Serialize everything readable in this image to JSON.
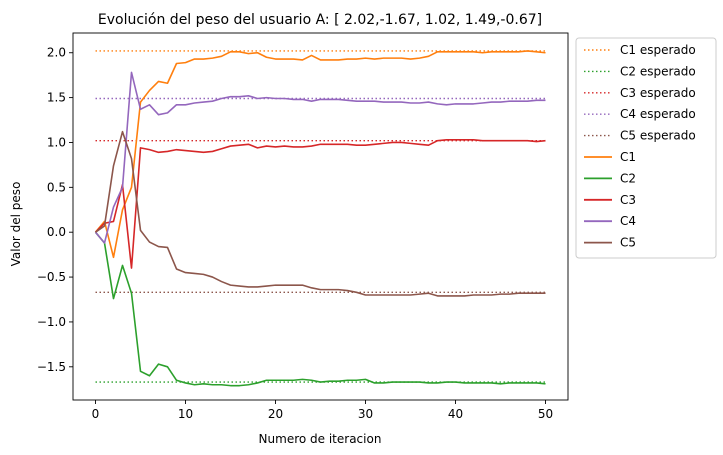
{
  "chart_data": {
    "type": "line",
    "title": "Evolución del peso del usuario A: [ 2.02,-1.67, 1.02, 1.49,-0.67]",
    "xlabel": "Numero de iteracion",
    "ylabel": "Valor del peso",
    "xlim": [
      -2.5,
      52.5
    ],
    "ylim": [
      -1.87,
      2.22
    ],
    "xticks": [
      0,
      10,
      20,
      30,
      40,
      50
    ],
    "yticks": [
      -1.5,
      -1.0,
      -0.5,
      0.0,
      0.5,
      1.0,
      1.5,
      2.0
    ],
    "ytick_labels": [
      "−1.5",
      "−1.0",
      "−0.5",
      "0.0",
      "0.5",
      "1.0",
      "1.5",
      "2.0"
    ],
    "grid": false,
    "legend_position": "outside-right",
    "expected": [
      {
        "name": "C1 esperado",
        "value": 2.02,
        "color": "#ff7f0e"
      },
      {
        "name": "C2 esperado",
        "value": -1.67,
        "color": "#2ca02c"
      },
      {
        "name": "C3 esperado",
        "value": 1.02,
        "color": "#d62728"
      },
      {
        "name": "C4 esperado",
        "value": 1.49,
        "color": "#9467bd"
      },
      {
        "name": "C5 esperado",
        "value": -0.67,
        "color": "#8c564b"
      }
    ],
    "x": [
      0,
      1,
      2,
      3,
      4,
      5,
      6,
      7,
      8,
      9,
      10,
      11,
      12,
      13,
      14,
      15,
      16,
      17,
      18,
      19,
      20,
      21,
      22,
      23,
      24,
      25,
      26,
      27,
      28,
      29,
      30,
      31,
      32,
      33,
      34,
      35,
      36,
      37,
      38,
      39,
      40,
      41,
      42,
      43,
      44,
      45,
      46,
      47,
      48,
      49,
      50
    ],
    "series": [
      {
        "name": "C1",
        "color": "#ff7f0e",
        "values": [
          0,
          0.12,
          -0.28,
          0.25,
          0.5,
          1.45,
          1.58,
          1.68,
          1.66,
          1.88,
          1.89,
          1.93,
          1.93,
          1.94,
          1.96,
          2.01,
          2.01,
          1.99,
          2.0,
          1.95,
          1.93,
          1.93,
          1.93,
          1.92,
          1.97,
          1.92,
          1.92,
          1.92,
          1.93,
          1.93,
          1.94,
          1.93,
          1.94,
          1.94,
          1.94,
          1.93,
          1.94,
          1.96,
          2.01,
          2.01,
          2.01,
          2.01,
          2.01,
          2.0,
          2.01,
          2.01,
          2.01,
          2.01,
          2.02,
          2.01,
          2.0
        ]
      },
      {
        "name": "C2",
        "color": "#2ca02c",
        "values": [
          0,
          -0.12,
          -0.74,
          -0.37,
          -0.68,
          -1.55,
          -1.6,
          -1.47,
          -1.5,
          -1.65,
          -1.68,
          -1.7,
          -1.69,
          -1.7,
          -1.7,
          -1.71,
          -1.71,
          -1.7,
          -1.68,
          -1.65,
          -1.65,
          -1.65,
          -1.65,
          -1.64,
          -1.65,
          -1.67,
          -1.66,
          -1.66,
          -1.65,
          -1.65,
          -1.64,
          -1.68,
          -1.68,
          -1.67,
          -1.67,
          -1.67,
          -1.67,
          -1.68,
          -1.68,
          -1.67,
          -1.67,
          -1.68,
          -1.68,
          -1.68,
          -1.68,
          -1.69,
          -1.68,
          -1.68,
          -1.68,
          -1.68,
          -1.69
        ]
      },
      {
        "name": "C3",
        "color": "#d62728",
        "values": [
          0,
          0.1,
          0.12,
          0.53,
          -0.4,
          0.94,
          0.92,
          0.89,
          0.9,
          0.92,
          0.91,
          0.9,
          0.89,
          0.9,
          0.93,
          0.96,
          0.97,
          0.98,
          0.94,
          0.96,
          0.95,
          0.96,
          0.95,
          0.95,
          0.96,
          0.98,
          0.98,
          0.98,
          0.98,
          0.97,
          0.97,
          0.98,
          0.99,
          1.0,
          1.0,
          0.99,
          0.98,
          0.97,
          1.02,
          1.03,
          1.03,
          1.03,
          1.03,
          1.02,
          1.02,
          1.02,
          1.02,
          1.02,
          1.02,
          1.01,
          1.02
        ]
      },
      {
        "name": "C4",
        "color": "#9467bd",
        "values": [
          0,
          -0.12,
          0.28,
          0.5,
          1.78,
          1.37,
          1.42,
          1.31,
          1.33,
          1.42,
          1.42,
          1.44,
          1.45,
          1.46,
          1.49,
          1.51,
          1.51,
          1.52,
          1.49,
          1.5,
          1.49,
          1.49,
          1.48,
          1.48,
          1.46,
          1.48,
          1.48,
          1.48,
          1.47,
          1.46,
          1.46,
          1.46,
          1.45,
          1.45,
          1.45,
          1.44,
          1.44,
          1.45,
          1.43,
          1.42,
          1.43,
          1.43,
          1.43,
          1.44,
          1.45,
          1.45,
          1.46,
          1.46,
          1.46,
          1.47,
          1.47
        ]
      },
      {
        "name": "C5",
        "color": "#8c564b",
        "values": [
          0,
          0.07,
          0.74,
          1.12,
          0.82,
          0.02,
          -0.11,
          -0.16,
          -0.17,
          -0.41,
          -0.45,
          -0.46,
          -0.47,
          -0.5,
          -0.55,
          -0.59,
          -0.6,
          -0.61,
          -0.61,
          -0.6,
          -0.59,
          -0.59,
          -0.59,
          -0.59,
          -0.62,
          -0.64,
          -0.64,
          -0.64,
          -0.65,
          -0.67,
          -0.7,
          -0.7,
          -0.7,
          -0.7,
          -0.7,
          -0.7,
          -0.69,
          -0.68,
          -0.71,
          -0.71,
          -0.71,
          -0.71,
          -0.7,
          -0.7,
          -0.7,
          -0.69,
          -0.69,
          -0.68,
          -0.68,
          -0.68,
          -0.68
        ]
      }
    ]
  }
}
